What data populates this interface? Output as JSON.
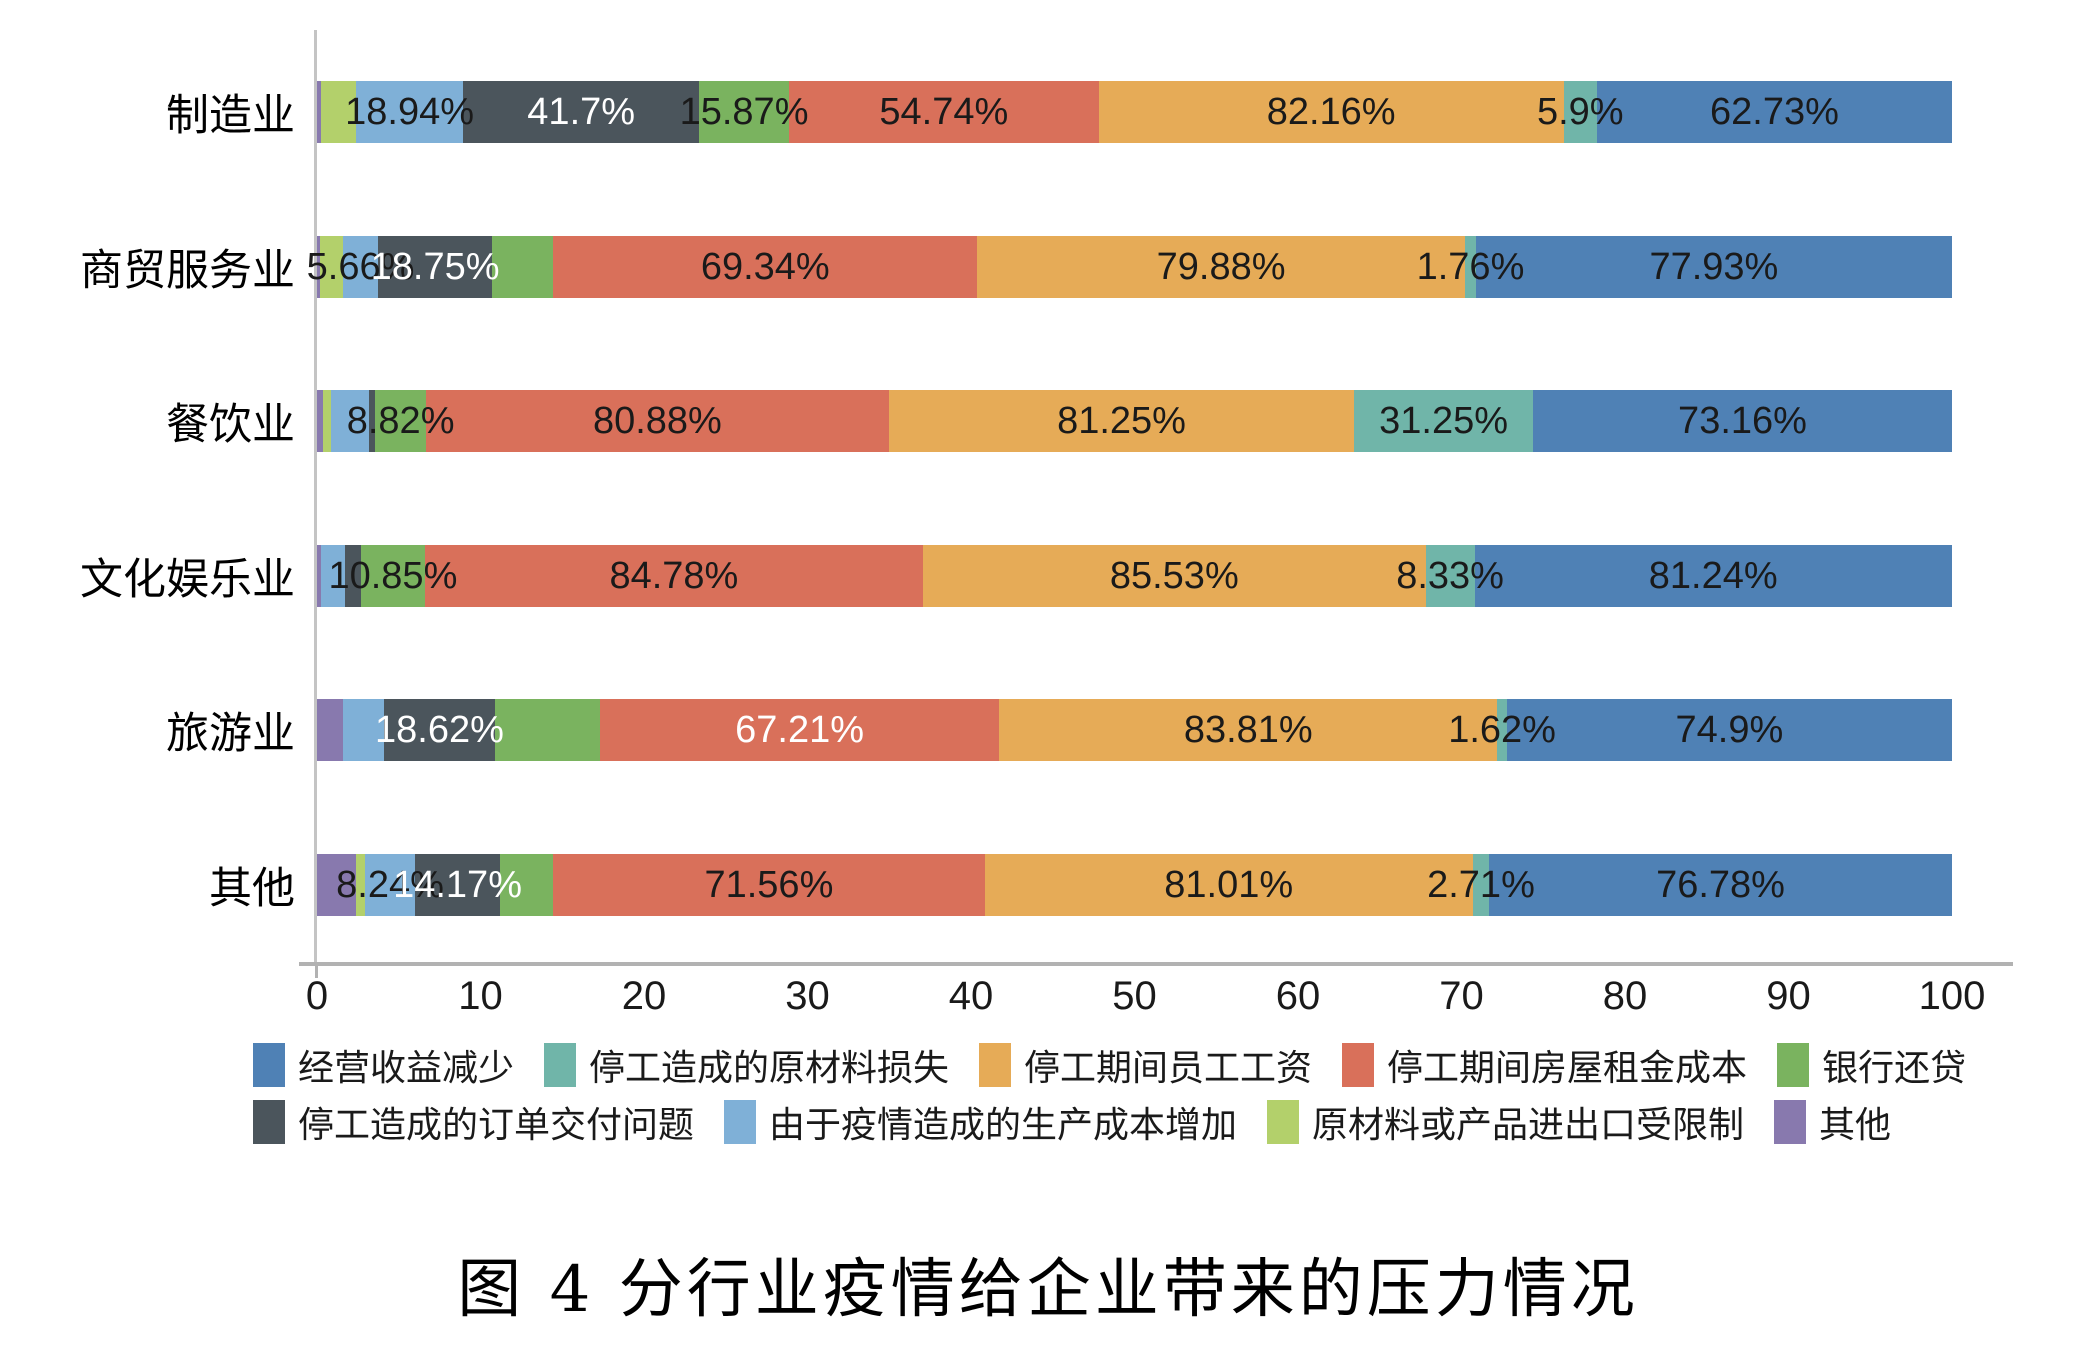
{
  "title": "图 4  分行业疫情给企业带来的压力情况",
  "chart_data": {
    "type": "bar",
    "subtype": "horizontal-100pct-stacked",
    "categories": [
      "制造业",
      "商贸服务业",
      "餐饮业",
      "文化娱乐业",
      "旅游业",
      "其他"
    ],
    "xlabel": "",
    "ylabel": "",
    "x_axis": {
      "ticks": [
        "0",
        "10",
        "20",
        "30",
        "40",
        "50",
        "60",
        "70",
        "80",
        "90",
        "100"
      ],
      "min": 0,
      "max": 100,
      "grid": false
    },
    "series": [
      {
        "name": "其他",
        "color": "#8879ae",
        "values": [
          0.7,
          0.5,
          1.0,
          0.7,
          4.4,
          6.5
        ],
        "labels": [
          "",
          "",
          "",
          "",
          "",
          ""
        ],
        "white_label": [
          false,
          false,
          false,
          false,
          false,
          false
        ]
      },
      {
        "name": "原材料或产品进出口受限制",
        "color": "#b3d06b",
        "values": [
          6.2,
          3.8,
          1.4,
          0,
          0,
          1.5
        ],
        "labels": [
          "",
          "",
          "",
          "",
          "",
          ""
        ],
        "white_label": [
          false,
          false,
          false,
          false,
          false,
          false
        ]
      },
      {
        "name": "由于疫情造成的生产成本增加",
        "color": "#7fb0d7",
        "values": [
          18.94,
          5.66,
          6.6,
          4.1,
          6.9,
          8.24
        ],
        "labels": [
          "18.94%",
          "5.66%",
          "",
          "",
          "",
          "8.24%"
        ],
        "white_label": [
          false,
          false,
          false,
          false,
          false,
          false
        ]
      },
      {
        "name": "停工造成的订单交付问题",
        "color": "#4b555c",
        "values": [
          41.7,
          18.75,
          1.2,
          2.7,
          18.62,
          14.17
        ],
        "labels": [
          "41.7%",
          "18.75%",
          "",
          "",
          "18.62%",
          "14.17%"
        ],
        "white_label": [
          true,
          true,
          false,
          false,
          true,
          true
        ]
      },
      {
        "name": "银行还贷",
        "color": "#7ab35f",
        "values": [
          15.87,
          10.0,
          8.82,
          10.85,
          17.7,
          8.8
        ],
        "labels": [
          "15.87%",
          "",
          "8.82%",
          "10.85%",
          "",
          ""
        ],
        "white_label": [
          false,
          false,
          false,
          false,
          false,
          false
        ]
      },
      {
        "name": "停工期间房屋租金成本",
        "color": "#d9705a",
        "values": [
          54.74,
          69.34,
          80.88,
          84.78,
          67.21,
          71.56
        ],
        "labels": [
          "54.74%",
          "69.34%",
          "80.88%",
          "84.78%",
          "67.21%",
          "71.56%"
        ],
        "white_label": [
          false,
          false,
          false,
          false,
          true,
          false
        ]
      },
      {
        "name": "停工期间员工工资",
        "color": "#e6ab57",
        "values": [
          82.16,
          79.88,
          81.25,
          85.53,
          83.81,
          81.01
        ],
        "labels": [
          "82.16%",
          "79.88%",
          "81.25%",
          "85.53%",
          "83.81%",
          "81.01%"
        ],
        "white_label": [
          false,
          false,
          false,
          false,
          false,
          false
        ]
      },
      {
        "name": "停工造成的原材料损失",
        "color": "#70b5a9",
        "values": [
          5.9,
          1.76,
          31.25,
          8.33,
          1.62,
          2.71
        ],
        "labels": [
          "5.9%",
          "1.76%",
          "31.25%",
          "8.33%",
          "1.62%",
          "2.71%"
        ],
        "white_label": [
          false,
          false,
          false,
          false,
          false,
          false
        ]
      },
      {
        "name": "经营收益减少",
        "color": "#4f81b5",
        "values": [
          62.73,
          77.93,
          73.16,
          81.24,
          74.9,
          76.78
        ],
        "labels": [
          "62.73%",
          "77.93%",
          "73.16%",
          "81.24%",
          "74.9%",
          "76.78%"
        ],
        "white_label": [
          false,
          false,
          false,
          false,
          false,
          false
        ]
      }
    ],
    "legend_rows": [
      [
        "经营收益减少",
        "停工造成的原材料损失",
        "停工期间员工工资",
        "停工期间房屋租金成本",
        "银行还贷"
      ],
      [
        "停工造成的订单交付问题",
        "由于疫情造成的生产成本增加",
        "原材料或产品进出口受限制",
        "其他"
      ]
    ],
    "legend_position": "bottom"
  }
}
